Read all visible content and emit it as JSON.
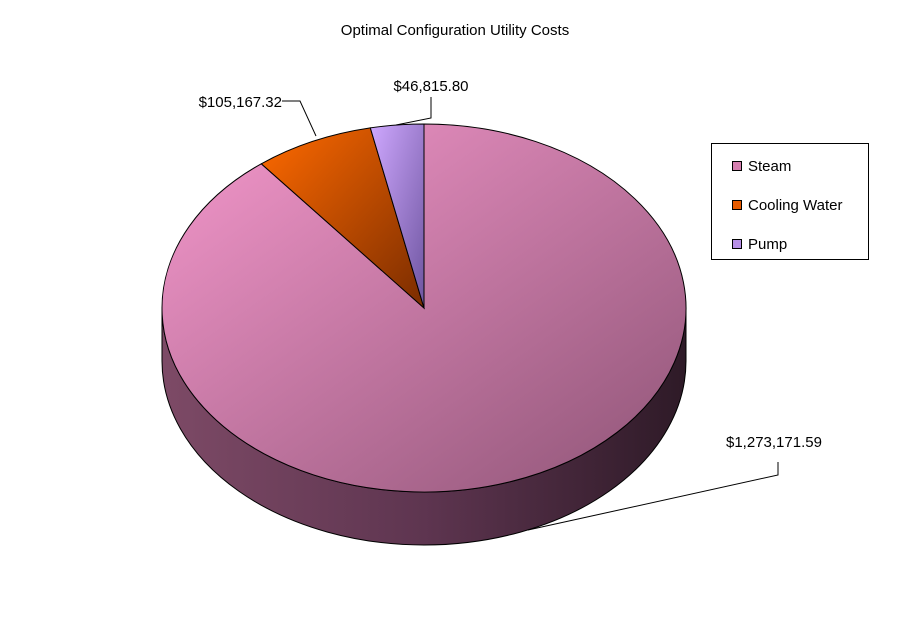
{
  "chart_data": {
    "type": "pie",
    "title": "Optimal Configuration Utility Costs",
    "slices": [
      {
        "label": "Steam",
        "value": 1273171.59,
        "data_label": "$1,273,171.59",
        "color": "#d67fb0"
      },
      {
        "label": "Cooling Water",
        "value": 105167.32,
        "data_label": "$105,167.32",
        "color": "#e85c00"
      },
      {
        "label": "Pump",
        "value": 46815.8,
        "data_label": "$46,815.80",
        "color": "#b890e8"
      }
    ],
    "legend_position": "right",
    "style": "3d"
  }
}
